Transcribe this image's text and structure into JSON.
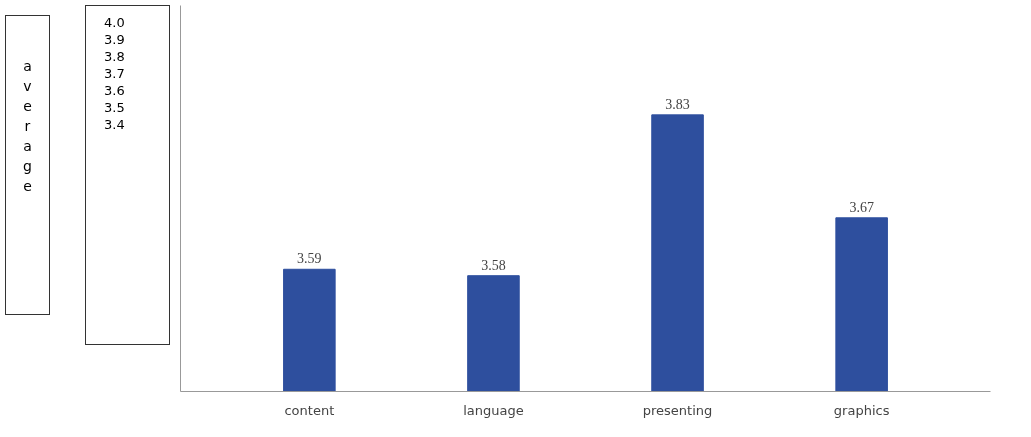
{
  "chart_data": {
    "type": "bar",
    "categories": [
      "content",
      "language",
      "presenting",
      "graphics"
    ],
    "values": [
      3.59,
      3.58,
      3.83,
      3.67
    ],
    "color": "#2e4f9e",
    "ylim": [
      3.4,
      4.0
    ],
    "data_labels": true,
    "grid": false,
    "annotations": [
      "average",
      "4.0",
      "3.9",
      "3.8",
      "3.7",
      "3.6",
      "3.5",
      "3.4"
    ]
  }
}
